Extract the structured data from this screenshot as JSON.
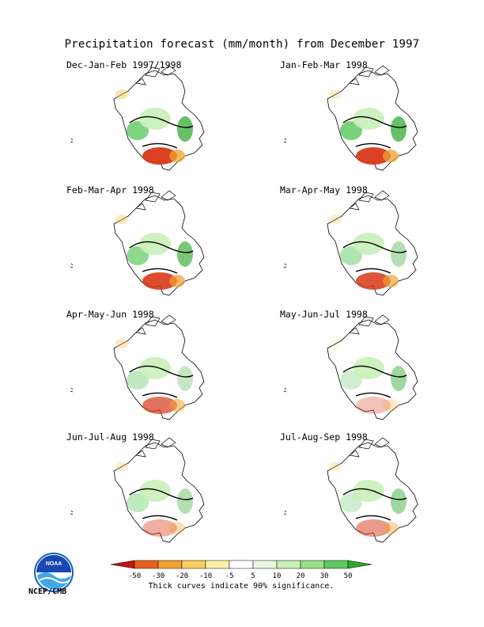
{
  "title": "Precipitation forecast (mm/month) from December 1997",
  "panels": [
    {
      "label": "Dec-Jan-Feb 1997/1998",
      "wet_west": 0.8,
      "wet_east": 0.8,
      "dry_south": 0.95,
      "dry_nw": 0.5
    },
    {
      "label": "Jan-Feb-Mar 1998",
      "wet_west": 0.85,
      "wet_east": 0.8,
      "dry_south": 0.95,
      "dry_nw": 0.3
    },
    {
      "label": "Feb-Mar-Apr 1998",
      "wet_west": 0.7,
      "wet_east": 0.7,
      "dry_south": 0.9,
      "dry_nw": 0.4
    },
    {
      "label": "Mar-Apr-May 1998",
      "wet_west": 0.5,
      "wet_east": 0.4,
      "dry_south": 0.85,
      "dry_nw": 0.3
    },
    {
      "label": "Apr-May-Jun 1998",
      "wet_west": 0.4,
      "wet_east": 0.3,
      "dry_south": 0.7,
      "dry_nw": 0.4
    },
    {
      "label": "May-Jun-Jul 1998",
      "wet_west": 0.3,
      "wet_east": 0.5,
      "dry_south": 0.3,
      "dry_nw": 0.1
    },
    {
      "label": "Jun-Jul-Aug 1998",
      "wet_west": 0.4,
      "wet_east": 0.4,
      "dry_south": 0.4,
      "dry_nw": 0.3
    },
    {
      "label": "Jul-Aug-Sep 1998",
      "wet_west": 0.3,
      "wet_east": 0.5,
      "dry_south": 0.5,
      "dry_nw": 0.3
    }
  ],
  "colorbar": {
    "colors": [
      "#c8140a",
      "#e8601e",
      "#f0a030",
      "#f8d060",
      "#fff0a8",
      "#ffffff",
      "#e8f8e0",
      "#c8f0b8",
      "#98e088",
      "#60c860",
      "#30a830"
    ],
    "tick_labels": [
      "-50",
      "-30",
      "-20",
      "-10",
      "-5",
      "5",
      "10",
      "20",
      "30",
      "50"
    ]
  },
  "note": "Thick curves indicate 90% significance.",
  "logo": {
    "text": "NOAA",
    "caption": "NCEP/CMB"
  }
}
